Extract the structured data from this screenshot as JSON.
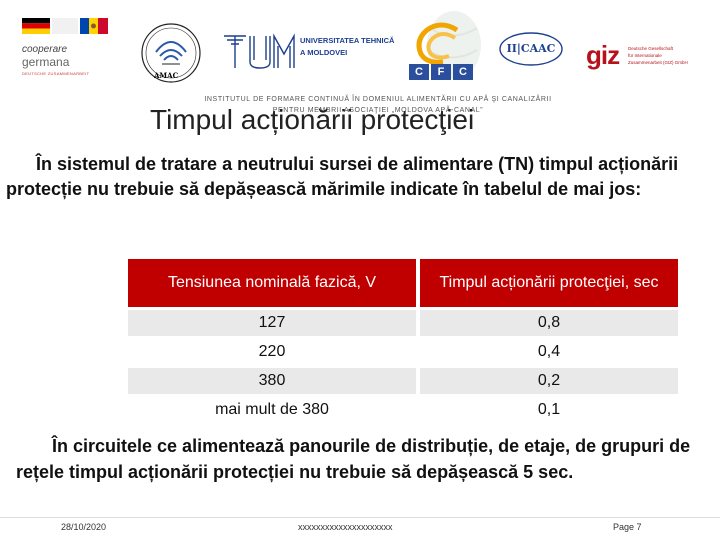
{
  "logos": {
    "cooperare": {
      "line1": "cooperare",
      "line2": "germana",
      "line3": "DEUTSCHE ZUSAMMENARBEIT"
    },
    "amac": {
      "label": "AMAC"
    },
    "utm": {
      "line1": "UNIVERSITATEA TEHNICĂ",
      "line2": "A MOLDOVEI"
    },
    "cfc": {
      "letters": [
        "C",
        "F",
        "C"
      ]
    },
    "iicaac": {
      "label": "II|CAAC"
    },
    "giz": {
      "mark": "giz",
      "sub1": "Deutsche Gesellschaft",
      "sub2": "für Internationale",
      "sub3": "Zusammenarbeit (GIZ) GmbH"
    }
  },
  "header": {
    "institute_line1": "INSTITUTUL DE FORMARE CONTINUĂ ÎN DOMENIUL ALIMENTĂRII CU APĂ ŞI CANALIZĂRII",
    "institute_line2": "PENTRU MEMBRII ASOCIAŢIEI „MOLDOVA APĂ-CANAL”",
    "title": "Timpul acționării protecţiei"
  },
  "body": {
    "intro": "În sistemul de tratare a neutrului sursei de alimentare (TN) timpul acționării protecție nu trebuie să depășească mărimile indicate în tabelul de mai jos:",
    "outro": "În circuitele ce alimentează panourile de distribuție, de etaje, de grupuri de rețele timpul acționării protecției nu trebuie să depășească 5 sec."
  },
  "table": {
    "headers": [
      "Tensiunea nominală fazică, V",
      "Timpul acționării protecţiei, sec"
    ],
    "rows": [
      [
        "127",
        "0,8"
      ],
      [
        "220",
        "0,4"
      ],
      [
        "380",
        "0,2"
      ],
      [
        "mai mult de 380",
        "0,1"
      ]
    ]
  },
  "footer": {
    "date": "28/10/2020",
    "middle": "xxxxxxxxxxxxxxxxxxxxx",
    "page": "Page 7"
  },
  "colors": {
    "table_header_bg": "#c00000",
    "table_alt_row_bg": "#e9e9e9",
    "giz_red": "#b5121b",
    "utm_blue": "#1c3f8f"
  }
}
